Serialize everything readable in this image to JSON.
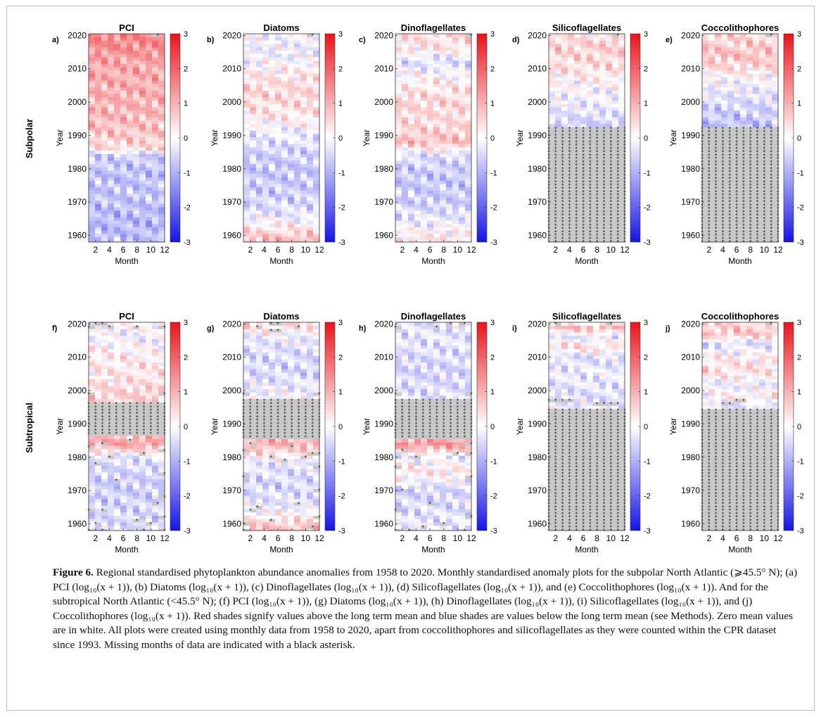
{
  "figure": {
    "row_labels": [
      "Subpolar",
      "Subtropical"
    ],
    "caption_label": "Figure 6.",
    "caption_text": "Regional standardised phytoplankton abundance anomalies from 1958 to 2020. Monthly standardised anomaly plots for the subpolar North Atlantic (⩾45.5° N); (a) PCI (log₁₀(x + 1)), (b) Diatoms (log₁₀(x + 1)), (c) Dinoflagellates (log₁₀(x + 1)), (d) Silicoflagellates (log₁₀(x + 1)), and (e) Coccolithophores (log₁₀(x + 1)). And for the subtropical North Atlantic (<45.5° N); (f) PCI (log₁₀(x + 1)), (g) Diatoms (log₁₀(x + 1)), (h) Dinoflagellates (log₁₀(x + 1)), (i) Silicoflagellates (log₁₀(x + 1)), and (j) Coccolithophores (log₁₀(x + 1)). Red shades signify values above the long term mean and blue shades are values below the long term mean (see Methods). Zero mean values are in white. All plots were created using monthly data from 1958 to 2020, apart from coccolithophores and silicoflagellates as they were counted within the CPR dataset since 1993. Missing months of data are indicated with a black asterisk."
  },
  "colors": {
    "positive": "#e8141b",
    "zero": "#ffffff",
    "negative": "#1414e6",
    "missing": "#c8c8c8",
    "missing_marker": "#222222"
  },
  "chart_data": [
    {
      "type": "heatmap",
      "panel": "a)",
      "region": "Subpolar",
      "title": "PCI",
      "xlabel": "Month",
      "ylabel": "Year",
      "x_ticks": [
        "2",
        "4",
        "6",
        "8",
        "10",
        "12"
      ],
      "y_ticks": [
        "1960",
        "1970",
        "1980",
        "1990",
        "2000",
        "2010",
        "2020"
      ],
      "colorbar_ticks": [
        "3",
        "2",
        "1",
        "0",
        "-1",
        "-2",
        "-3"
      ],
      "clim": [
        -3,
        3
      ],
      "xlim": [
        1,
        12
      ],
      "ylim": [
        1958,
        2020
      ],
      "data_start_year": 1958,
      "bands": [
        [
          1958,
          -0.8
        ],
        [
          1965,
          -0.9
        ],
        [
          1972,
          -0.7
        ],
        [
          1978,
          -0.8
        ],
        [
          1984,
          -0.6
        ],
        [
          1986,
          0.4
        ],
        [
          1990,
          0.7
        ],
        [
          1996,
          0.9
        ],
        [
          2004,
          1.0
        ],
        [
          2012,
          1.1
        ],
        [
          2016,
          1.4
        ],
        [
          2020,
          1.5
        ]
      ],
      "missing": [
        [
          2020,
          11
        ]
      ]
    },
    {
      "type": "heatmap",
      "panel": "b)",
      "region": "Subpolar",
      "title": "Diatoms",
      "xlabel": "Month",
      "ylabel": "Year",
      "x_ticks": [
        "2",
        "4",
        "6",
        "8",
        "10",
        "12"
      ],
      "y_ticks": [
        "1960",
        "1970",
        "1980",
        "1990",
        "2000",
        "2010",
        "2020"
      ],
      "colorbar_ticks": [
        "3",
        "2",
        "1",
        "0",
        "-1",
        "-2",
        "-3"
      ],
      "clim": [
        -3,
        3
      ],
      "xlim": [
        1,
        12
      ],
      "ylim": [
        1958,
        2020
      ],
      "data_start_year": 1958,
      "bands": [
        [
          1958,
          1.0
        ],
        [
          1962,
          0.3
        ],
        [
          1966,
          -0.3
        ],
        [
          1972,
          -0.6
        ],
        [
          1980,
          -0.7
        ],
        [
          1986,
          -0.5
        ],
        [
          1992,
          -0.1
        ],
        [
          1996,
          0.3
        ],
        [
          2002,
          0.5
        ],
        [
          2008,
          0.3
        ],
        [
          2014,
          -0.2
        ],
        [
          2020,
          -0.1
        ]
      ],
      "missing": [
        [
          2020,
          11
        ]
      ]
    },
    {
      "type": "heatmap",
      "panel": "c)",
      "region": "Subpolar",
      "title": "Dinoflagellates",
      "xlabel": "Month",
      "ylabel": "Year",
      "x_ticks": [
        "2",
        "4",
        "6",
        "8",
        "10",
        "12"
      ],
      "y_ticks": [
        "1960",
        "1970",
        "1980",
        "1990",
        "2000",
        "2010",
        "2020"
      ],
      "colorbar_ticks": [
        "3",
        "2",
        "1",
        "0",
        "-1",
        "-2",
        "-3"
      ],
      "clim": [
        -3,
        3
      ],
      "xlim": [
        1,
        12
      ],
      "ylim": [
        1958,
        2020
      ],
      "data_start_year": 1958,
      "bands": [
        [
          1958,
          0.4
        ],
        [
          1964,
          -0.2
        ],
        [
          1970,
          -0.6
        ],
        [
          1978,
          -0.7
        ],
        [
          1984,
          -0.4
        ],
        [
          1988,
          0.8
        ],
        [
          1994,
          0.4
        ],
        [
          2000,
          0.5
        ],
        [
          2006,
          0.2
        ],
        [
          2012,
          -0.4
        ],
        [
          2016,
          0.3
        ],
        [
          2020,
          0.4
        ]
      ],
      "missing": [
        [
          2020,
          12
        ]
      ]
    },
    {
      "type": "heatmap",
      "panel": "d)",
      "region": "Subpolar",
      "title": "Silicoflagellates",
      "xlabel": "Month",
      "ylabel": "Year",
      "x_ticks": [
        "2",
        "4",
        "6",
        "8",
        "10",
        "12"
      ],
      "y_ticks": [
        "1960",
        "1970",
        "1980",
        "1990",
        "2000",
        "2010",
        "2020"
      ],
      "colorbar_ticks": [
        "3",
        "2",
        "1",
        "0",
        "-1",
        "-2",
        "-3"
      ],
      "clim": [
        -3,
        3
      ],
      "xlim": [
        1,
        12
      ],
      "ylim": [
        1958,
        2020
      ],
      "data_start_year": 1993,
      "bands": [
        [
          1993,
          -0.6
        ],
        [
          1997,
          -0.3
        ],
        [
          2002,
          -0.1
        ],
        [
          2006,
          0.1
        ],
        [
          2010,
          0.4
        ],
        [
          2014,
          0.5
        ],
        [
          2017,
          0.6
        ],
        [
          2020,
          0.3
        ]
      ],
      "missing": [
        [
          2020,
          11
        ]
      ]
    },
    {
      "type": "heatmap",
      "panel": "e)",
      "region": "Subpolar",
      "title": "Coccolithophores",
      "xlabel": "Month",
      "ylabel": "Year",
      "x_ticks": [
        "2",
        "4",
        "6",
        "8",
        "10",
        "12"
      ],
      "y_ticks": [
        "1960",
        "1970",
        "1980",
        "1990",
        "2000",
        "2010",
        "2020"
      ],
      "colorbar_ticks": [
        "3",
        "2",
        "1",
        "0",
        "-1",
        "-2",
        "-3"
      ],
      "clim": [
        -3,
        3
      ],
      "xlim": [
        1,
        12
      ],
      "ylim": [
        1958,
        2020
      ],
      "data_start_year": 1993,
      "bands": [
        [
          1993,
          -0.8
        ],
        [
          1997,
          -0.6
        ],
        [
          2002,
          -0.3
        ],
        [
          2006,
          -0.1
        ],
        [
          2010,
          0.4
        ],
        [
          2014,
          0.8
        ],
        [
          2017,
          0.6
        ],
        [
          2020,
          0.5
        ]
      ],
      "missing": [
        [
          2020,
          11
        ]
      ]
    },
    {
      "type": "heatmap",
      "panel": "f)",
      "region": "Subtropical",
      "title": "PCI",
      "xlabel": "Month",
      "ylabel": "Year",
      "x_ticks": [
        "2",
        "4",
        "6",
        "8",
        "10",
        "12"
      ],
      "y_ticks": [
        "1960",
        "1970",
        "1980",
        "1990",
        "2000",
        "2010",
        "2020"
      ],
      "colorbar_ticks": [
        "3",
        "2",
        "1",
        "0",
        "-1",
        "-2",
        "-3"
      ],
      "clim": [
        -3,
        3
      ],
      "xlim": [
        1,
        12
      ],
      "ylim": [
        1958,
        2020
      ],
      "data_start_year": 1958,
      "bands": [
        [
          1958,
          -0.4
        ],
        [
          1964,
          -0.5
        ],
        [
          1970,
          -0.6
        ],
        [
          1976,
          -0.5
        ],
        [
          1980,
          -0.3
        ],
        [
          1984,
          1.2
        ],
        [
          1988,
          0.4
        ],
        [
          1993,
          0.3
        ],
        [
          1998,
          0.6
        ],
        [
          2004,
          0.3
        ],
        [
          2010,
          0.2
        ],
        [
          2016,
          -0.1
        ],
        [
          2020,
          0.1
        ]
      ],
      "missing_year_ranges": [
        [
          1987,
          1996
        ]
      ],
      "missing": [
        [
          1958,
          1
        ],
        [
          1958,
          3
        ],
        [
          1958,
          9
        ],
        [
          1958,
          12
        ],
        [
          1960,
          2
        ],
        [
          1960,
          10
        ],
        [
          1961,
          8
        ],
        [
          1962,
          12
        ],
        [
          1964,
          1
        ],
        [
          1964,
          3
        ],
        [
          1966,
          11
        ],
        [
          1968,
          12
        ],
        [
          1973,
          5
        ],
        [
          1975,
          12
        ],
        [
          1978,
          2
        ],
        [
          1980,
          4
        ],
        [
          1981,
          9
        ],
        [
          1982,
          12
        ],
        [
          1983,
          1
        ],
        [
          1984,
          3
        ],
        [
          1985,
          7
        ],
        [
          1999,
          1
        ],
        [
          1999,
          12
        ],
        [
          2019,
          1
        ],
        [
          2019,
          4
        ],
        [
          2019,
          8
        ],
        [
          2019,
          12
        ],
        [
          2020,
          2
        ],
        [
          2020,
          3
        ]
      ]
    },
    {
      "type": "heatmap",
      "panel": "g)",
      "region": "Subtropical",
      "title": "Diatoms",
      "xlabel": "Month",
      "ylabel": "Year",
      "x_ticks": [
        "2",
        "4",
        "6",
        "8",
        "10",
        "12"
      ],
      "y_ticks": [
        "1960",
        "1970",
        "1980",
        "1990",
        "2000",
        "2010",
        "2020"
      ],
      "colorbar_ticks": [
        "3",
        "2",
        "1",
        "0",
        "-1",
        "-2",
        "-3"
      ],
      "clim": [
        -3,
        3
      ],
      "xlim": [
        1,
        12
      ],
      "ylim": [
        1958,
        2020
      ],
      "data_start_year": 1958,
      "bands": [
        [
          1958,
          0.9
        ],
        [
          1962,
          0.2
        ],
        [
          1966,
          -0.3
        ],
        [
          1972,
          -0.5
        ],
        [
          1978,
          -0.3
        ],
        [
          1984,
          1.0
        ],
        [
          1988,
          0.5
        ],
        [
          1994,
          0.2
        ],
        [
          2000,
          -0.2
        ],
        [
          2006,
          -0.5
        ],
        [
          2012,
          -0.4
        ],
        [
          2016,
          -0.2
        ],
        [
          2020,
          0.5
        ]
      ],
      "missing_year_ranges": [
        [
          1986,
          1997
        ]
      ],
      "missing": [
        [
          1958,
          1
        ],
        [
          1959,
          11
        ],
        [
          1960,
          1
        ],
        [
          1961,
          5
        ],
        [
          1962,
          12
        ],
        [
          1964,
          2
        ],
        [
          1965,
          3
        ],
        [
          1966,
          9
        ],
        [
          1970,
          12
        ],
        [
          1974,
          1
        ],
        [
          1977,
          12
        ],
        [
          1979,
          7
        ],
        [
          1980,
          5
        ],
        [
          1980,
          10
        ],
        [
          1981,
          11
        ],
        [
          1981,
          12
        ],
        [
          1982,
          1
        ],
        [
          1983,
          8
        ],
        [
          1984,
          2
        ],
        [
          1999,
          1
        ],
        [
          1999,
          12
        ],
        [
          2018,
          5
        ],
        [
          2018,
          6
        ],
        [
          2019,
          3
        ],
        [
          2019,
          9
        ],
        [
          2020,
          5
        ],
        [
          2020,
          6
        ]
      ]
    },
    {
      "type": "heatmap",
      "panel": "h)",
      "region": "Subtropical",
      "title": "Dinoflagellates",
      "xlabel": "Month",
      "ylabel": "Year",
      "x_ticks": [
        "2",
        "4",
        "6",
        "8",
        "10",
        "12"
      ],
      "y_ticks": [
        "1960",
        "1970",
        "1980",
        "1990",
        "2000",
        "2010",
        "2020"
      ],
      "colorbar_ticks": [
        "3",
        "2",
        "1",
        "0",
        "-1",
        "-2",
        "-3"
      ],
      "clim": [
        -3,
        3
      ],
      "xlim": [
        1,
        12
      ],
      "ylim": [
        1958,
        2020
      ],
      "data_start_year": 1958,
      "bands": [
        [
          1958,
          -0.2
        ],
        [
          1964,
          -0.4
        ],
        [
          1970,
          -0.5
        ],
        [
          1976,
          0.3
        ],
        [
          1980,
          -0.2
        ],
        [
          1984,
          1.3
        ],
        [
          1988,
          0.3
        ],
        [
          1994,
          -0.3
        ],
        [
          2000,
          -0.4
        ],
        [
          2006,
          -0.5
        ],
        [
          2012,
          -0.4
        ],
        [
          2016,
          -0.3
        ],
        [
          2020,
          -0.4
        ]
      ],
      "missing_year_ranges": [
        [
          1986,
          1997
        ]
      ],
      "missing": [
        [
          1958,
          1
        ],
        [
          1958,
          3
        ],
        [
          1958,
          11
        ],
        [
          1959,
          5
        ],
        [
          1960,
          8
        ],
        [
          1962,
          12
        ],
        [
          1964,
          1
        ],
        [
          1966,
          6
        ],
        [
          1970,
          2
        ],
        [
          1974,
          12
        ],
        [
          1977,
          1
        ],
        [
          1980,
          4
        ],
        [
          1981,
          10
        ],
        [
          1981,
          12
        ],
        [
          1982,
          2
        ],
        [
          1984,
          12
        ],
        [
          1999,
          1
        ],
        [
          1999,
          12
        ],
        [
          2019,
          1
        ],
        [
          2019,
          7
        ],
        [
          2020,
          9
        ],
        [
          2020,
          11
        ]
      ]
    },
    {
      "type": "heatmap",
      "panel": "i)",
      "region": "Subtropical",
      "title": "Silicoflagellates",
      "xlabel": "Month",
      "ylabel": "Year",
      "x_ticks": [
        "2",
        "4",
        "6",
        "8",
        "10",
        "12"
      ],
      "y_ticks": [
        "1960",
        "1970",
        "1980",
        "1990",
        "2000",
        "2010",
        "2020"
      ],
      "colorbar_ticks": [
        "3",
        "2",
        "1",
        "0",
        "-1",
        "-2",
        "-3"
      ],
      "clim": [
        -3,
        3
      ],
      "xlim": [
        1,
        12
      ],
      "ylim": [
        1958,
        2020
      ],
      "data_start_year": 1995,
      "bands": [
        [
          1995,
          -0.2
        ],
        [
          1998,
          -0.4
        ],
        [
          2002,
          -0.3
        ],
        [
          2006,
          -0.2
        ],
        [
          2010,
          -0.4
        ],
        [
          2013,
          0.4
        ],
        [
          2016,
          -0.3
        ],
        [
          2019,
          0.8
        ],
        [
          2020,
          0.2
        ]
      ],
      "missing": [
        [
          1997,
          1
        ],
        [
          1997,
          2
        ],
        [
          1997,
          3
        ],
        [
          1997,
          4
        ],
        [
          1996,
          8
        ],
        [
          1996,
          9
        ],
        [
          1996,
          10
        ],
        [
          1996,
          11
        ],
        [
          2020,
          2
        ],
        [
          2020,
          10
        ]
      ]
    },
    {
      "type": "heatmap",
      "panel": "j)",
      "region": "Subtropical",
      "title": "Coccolithophores",
      "xlabel": "Month",
      "ylabel": "Year",
      "x_ticks": [
        "2",
        "4",
        "6",
        "8",
        "10",
        "12"
      ],
      "y_ticks": [
        "1960",
        "1970",
        "1980",
        "1990",
        "2000",
        "2010",
        "2020"
      ],
      "colorbar_ticks": [
        "3",
        "2",
        "1",
        "0",
        "-1",
        "-2",
        "-3"
      ],
      "clim": [
        -3,
        3
      ],
      "xlim": [
        1,
        12
      ],
      "ylim": [
        1958,
        2020
      ],
      "data_start_year": 1995,
      "bands": [
        [
          1995,
          -0.3
        ],
        [
          1998,
          0.2
        ],
        [
          2002,
          -0.2
        ],
        [
          2006,
          0.4
        ],
        [
          2010,
          0.2
        ],
        [
          2014,
          -0.4
        ],
        [
          2017,
          0.7
        ],
        [
          2020,
          0.5
        ]
      ],
      "missing": [
        [
          1996,
          4
        ],
        [
          1996,
          5
        ],
        [
          1997,
          6
        ],
        [
          1997,
          7
        ],
        [
          2020,
          11
        ]
      ]
    }
  ]
}
